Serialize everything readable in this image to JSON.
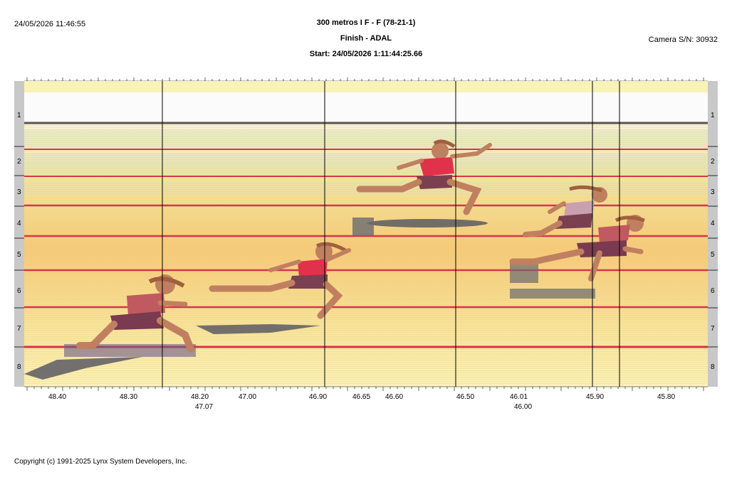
{
  "header": {
    "datetime": "24/05/2026 11:46:55",
    "title": "300 metros I F - F (78-21-1)",
    "subtitle": "Finish - ADAL",
    "start": "Start: 24/05/2026 1:11:44:25.66",
    "camera": "Camera S/N: 30932"
  },
  "lanes": [
    "1",
    "2",
    "3",
    "4",
    "5",
    "6",
    "7",
    "8"
  ],
  "time_axis": [
    {
      "label": "48.40"
    },
    {
      "label": "48.30"
    },
    {
      "label": "48.20",
      "sub": "47.07"
    },
    {
      "label": "47.00"
    },
    {
      "label": "46.90"
    },
    {
      "label": "46.65"
    },
    {
      "label": "46.60"
    },
    {
      "label": "46.50"
    },
    {
      "label": "46.01",
      "sub": "46.00"
    },
    {
      "label": "45.90"
    },
    {
      "label": "45.80"
    }
  ],
  "colors": {
    "track_yellow": "#f8e9a0",
    "track_orange": "#f6c978",
    "lane_line": "#d8344a",
    "runner_red": "#e0324a",
    "skin": "#c08060",
    "shadow": "#6a6a70",
    "side_bar": "#c8c8c8"
  },
  "footer": "Copyright (c) 1991-2025 Lynx System Developers, Inc."
}
